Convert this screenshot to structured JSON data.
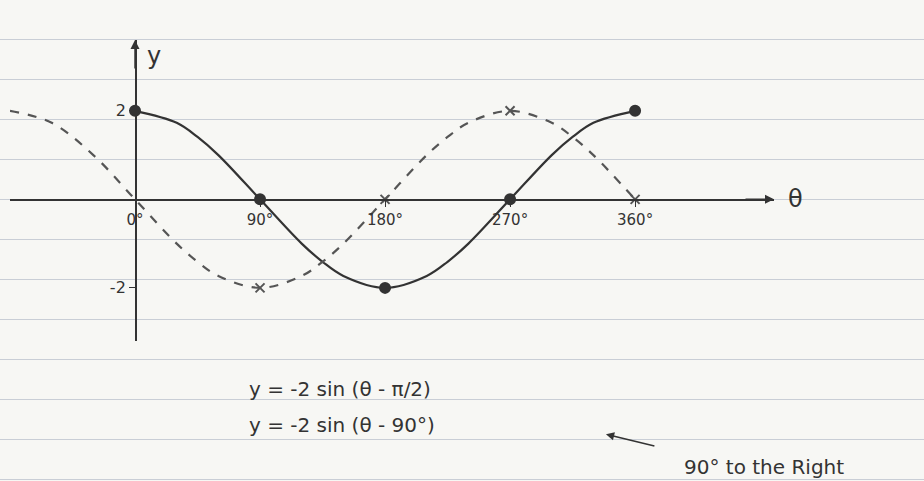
{
  "chart_data": {
    "type": "line",
    "x_label": "θ",
    "y_label": "y",
    "xlim": [
      -90,
      460
    ],
    "ylim": [
      -3.2,
      3.6
    ],
    "xticks": [
      {
        "value": 0,
        "label": "0°"
      },
      {
        "value": 90,
        "label": "90°"
      },
      {
        "value": 180,
        "label": "180°"
      },
      {
        "value": 270,
        "label": "270°"
      },
      {
        "value": 360,
        "label": "360°"
      }
    ],
    "yticks": [
      2,
      -2
    ],
    "grid": false,
    "series": [
      {
        "type": "line",
        "color": "#333333",
        "line_style": "solid",
        "x": [
          0,
          30,
          45,
          60,
          90,
          120,
          135,
          150,
          180,
          210,
          225,
          240,
          270,
          300,
          315,
          330,
          360
        ],
        "values": [
          2,
          1.73,
          1.41,
          1,
          0,
          -1,
          -1.41,
          -1.73,
          -2,
          -1.73,
          -1.41,
          -1,
          0,
          1,
          1.41,
          1.73,
          2
        ]
      },
      {
        "type": "scatter",
        "color": "#333333",
        "marker": "circle",
        "x": [
          0,
          90,
          180,
          270,
          360
        ],
        "values": [
          2,
          0,
          -2,
          0,
          2
        ]
      },
      {
        "type": "line",
        "color": "#555555",
        "line_style": "dashed",
        "x": [
          -90,
          -60,
          -30,
          0,
          30,
          45,
          60,
          90,
          120,
          135,
          150,
          180,
          210,
          225,
          240,
          270,
          300,
          315,
          330,
          360
        ],
        "values": [
          2,
          1.73,
          1,
          0,
          -1,
          -1.41,
          -1.73,
          -2,
          -1.73,
          -1.41,
          -1,
          0,
          1,
          1.41,
          1.73,
          2,
          1.73,
          1.41,
          1,
          0
        ]
      },
      {
        "type": "scatter",
        "color": "#555555",
        "marker": "x",
        "x": [
          90,
          180,
          270,
          360
        ],
        "values": [
          -2,
          0,
          2,
          0
        ]
      }
    ],
    "annotations": [
      "y = -2 sin (θ - π/2)",
      "y = -2 sin (θ - 90°)",
      "90° to the Right"
    ]
  }
}
